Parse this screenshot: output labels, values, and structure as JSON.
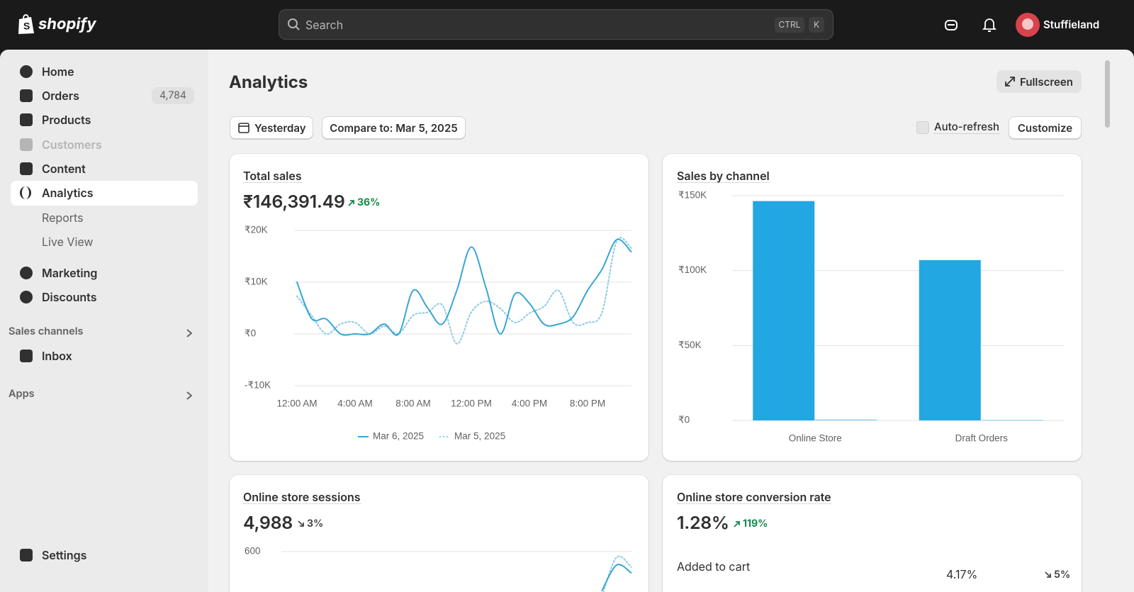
{
  "topbar": {
    "logo": "shopify",
    "search_placeholder": "Search",
    "shortcut": [
      "CTRL",
      "K"
    ],
    "store_name": "Stuffieland"
  },
  "sidebar": {
    "nav": [
      "Home",
      "Orders",
      "Products",
      "Customers",
      "Content",
      "Analytics"
    ],
    "orders_badge": "4,784",
    "analytics_sub": [
      "Reports",
      "Live View"
    ],
    "nav2": [
      "Marketing",
      "Discounts"
    ],
    "sales_channels": {
      "title": "Sales channels",
      "items": [
        "Inbox"
      ]
    },
    "apps": "Apps",
    "settings": "Settings"
  },
  "page": {
    "title": "Analytics",
    "fullscreen": "Fullscreen",
    "date_range": "Yesterday",
    "compare": "Compare to: Mar 5, 2025",
    "auto_refresh": "Auto-refresh",
    "customize": "Customize"
  },
  "cards": [
    {
      "title": "Total sales",
      "value": "₹146,391.49",
      "change": "36%",
      "trend": "up"
    },
    {
      "title": "Sales by channel"
    },
    {
      "title": "Online store sessions",
      "value": "4,988",
      "change": "3%",
      "trend": "down"
    },
    {
      "title": "Online store conversion rate",
      "value": "1.28%",
      "change": "119%",
      "trend": "up",
      "rows": [
        {
          "label": "Added to cart",
          "value": "4.17%",
          "change": "5%",
          "trend": "down"
        }
      ]
    }
  ],
  "chart_data": [
    {
      "type": "line",
      "categories": [
        "12:00 AM",
        null,
        null,
        null,
        "4:00 AM",
        null,
        null,
        null,
        "8:00 AM",
        null,
        null,
        null,
        "12:00 PM",
        null,
        null,
        null,
        "4:00 PM",
        null,
        null,
        null,
        "8:00 PM",
        null,
        null,
        null
      ],
      "series": [
        {
          "name": "Mar 6, 2025",
          "color": "#38a6d4",
          "style": "solid",
          "values": [
            10000,
            3000,
            2900,
            0,
            0,
            0,
            1900,
            0,
            8400,
            5000,
            1900,
            8400,
            16800,
            9000,
            0,
            7700,
            5900,
            1900,
            1900,
            3300,
            8400,
            12500,
            18200,
            15900
          ]
        },
        {
          "name": "Mar 5, 2025",
          "color": "#8ccbe6",
          "style": "dotted",
          "values": [
            7300,
            3600,
            0,
            1900,
            2200,
            0,
            1500,
            100,
            3600,
            4200,
            5600,
            -1900,
            4200,
            6300,
            4900,
            2200,
            4000,
            5300,
            8400,
            2200,
            2200,
            4200,
            17900,
            16600
          ]
        }
      ],
      "ylim": [
        -10000,
        20000
      ],
      "yticks": [
        {
          "value": -10000,
          "label": "-₹10K"
        },
        {
          "value": 0,
          "label": "₹0"
        },
        {
          "value": 10000,
          "label": "₹10K"
        },
        {
          "value": 20000,
          "label": "₹20K"
        }
      ],
      "grid": true,
      "legend": "bottom"
    },
    {
      "type": "bar",
      "categories": [
        "Online Store",
        "Draft Orders"
      ],
      "series": [
        {
          "color": "#22a7e2",
          "values": [
            146391.49,
            107000
          ]
        },
        {
          "color": "#80c9ea",
          "values": [
            600,
            300
          ]
        }
      ],
      "ylim": [
        0,
        150000
      ],
      "yticks": [
        {
          "value": 0,
          "label": "₹0"
        },
        {
          "value": 50000,
          "label": "₹50K"
        },
        {
          "value": 100000,
          "label": "₹100K"
        },
        {
          "value": 150000,
          "label": "₹150K"
        }
      ],
      "grid": true
    },
    {
      "type": "line",
      "categories": [
        null,
        null,
        null,
        null,
        null,
        null,
        null,
        null,
        null,
        null,
        null,
        null,
        null,
        null,
        null,
        null,
        null,
        null,
        null,
        null,
        null,
        null,
        null,
        null
      ],
      "series": [
        {
          "color": "#38a6d4",
          "style": "solid",
          "values": [
            null,
            null,
            null,
            null,
            null,
            null,
            null,
            null,
            null,
            null,
            null,
            null,
            null,
            null,
            null,
            null,
            null,
            null,
            null,
            null,
            null,
            450,
            548,
            518
          ]
        },
        {
          "color": "#8ccbe6",
          "style": "dotted",
          "values": [
            null,
            null,
            null,
            null,
            null,
            null,
            null,
            null,
            null,
            null,
            null,
            null,
            null,
            null,
            null,
            null,
            null,
            null,
            null,
            null,
            null,
            430,
            578,
            540
          ]
        }
      ],
      "ylim": [
        0,
        600
      ],
      "yticks": [
        600
      ],
      "grid": true
    }
  ]
}
